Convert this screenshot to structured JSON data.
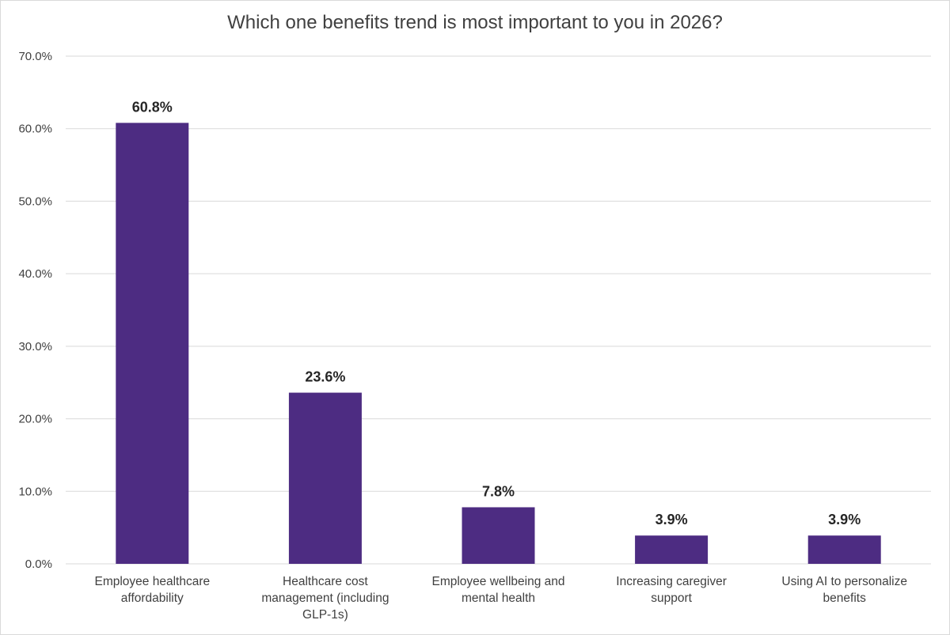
{
  "chart_data": {
    "type": "bar",
    "title": "Which one benefits trend is most important to you in 2026?",
    "xlabel": "",
    "ylabel": "",
    "categories": [
      "Employee healthcare affordability",
      "Healthcare cost management (including GLP-1s)",
      "Employee wellbeing and mental health",
      "Increasing caregiver support",
      "Using AI to personalize benefits"
    ],
    "category_lines": [
      [
        "Employee healthcare",
        "affordability"
      ],
      [
        "Healthcare cost",
        "management (including",
        "GLP-1s)"
      ],
      [
        "Employee wellbeing and",
        "mental health"
      ],
      [
        "Increasing caregiver",
        "support"
      ],
      [
        "Using AI to personalize",
        "benefits"
      ]
    ],
    "values": [
      60.8,
      23.6,
      7.8,
      3.9,
      3.9
    ],
    "data_labels": [
      "60.8%",
      "23.6%",
      "7.8%",
      "3.9%",
      "3.9%"
    ],
    "ylim": [
      0,
      70
    ],
    "yticks": [
      0,
      10,
      20,
      30,
      40,
      50,
      60,
      70
    ],
    "ytick_labels": [
      "0.0%",
      "10.0%",
      "20.0%",
      "30.0%",
      "40.0%",
      "50.0%",
      "60.0%",
      "70.0%"
    ],
    "grid": true,
    "legend": "none",
    "bar_color": "#4d2c82",
    "grid_color": "#d9d9d9"
  }
}
